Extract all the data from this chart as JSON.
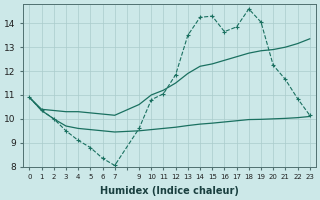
{
  "xlabel": "Humidex (Indice chaleur)",
  "bg_color": "#cce8e8",
  "grid_color": "#aacccc",
  "line_color": "#1a7060",
  "xlim": [
    -0.5,
    23.5
  ],
  "ylim": [
    8,
    14.8
  ],
  "yticks": [
    8,
    9,
    10,
    11,
    12,
    13,
    14
  ],
  "curve1_x": [
    0,
    1,
    2,
    3,
    4,
    5,
    6,
    7,
    9,
    10,
    11,
    12,
    13,
    14,
    15,
    16,
    17,
    18,
    19,
    20,
    21,
    22,
    23
  ],
  "curve1_y": [
    10.9,
    10.35,
    10.0,
    9.5,
    9.1,
    8.8,
    8.35,
    8.05,
    9.6,
    10.8,
    11.05,
    11.85,
    13.5,
    14.25,
    14.3,
    13.65,
    13.85,
    14.6,
    14.05,
    12.25,
    11.65,
    10.85,
    10.15
  ],
  "curve2_x": [
    0,
    1,
    2,
    3,
    4,
    5,
    6,
    7,
    9,
    10,
    11,
    12,
    13,
    14,
    15,
    16,
    17,
    18,
    19,
    20,
    21,
    22,
    23
  ],
  "curve2_y": [
    10.9,
    10.4,
    10.35,
    10.3,
    10.3,
    10.25,
    10.2,
    10.15,
    10.6,
    11.0,
    11.2,
    11.5,
    11.9,
    12.2,
    12.3,
    12.45,
    12.6,
    12.75,
    12.85,
    12.9,
    13.0,
    13.15,
    13.35
  ],
  "curve3_x": [
    0,
    1,
    2,
    3,
    4,
    5,
    6,
    7,
    9,
    10,
    11,
    12,
    13,
    14,
    15,
    16,
    17,
    18,
    19,
    20,
    21,
    22,
    23
  ],
  "curve3_y": [
    10.9,
    10.35,
    10.0,
    9.7,
    9.6,
    9.55,
    9.5,
    9.45,
    9.5,
    9.55,
    9.6,
    9.65,
    9.72,
    9.78,
    9.82,
    9.87,
    9.92,
    9.97,
    9.98,
    10.0,
    10.02,
    10.05,
    10.1
  ]
}
